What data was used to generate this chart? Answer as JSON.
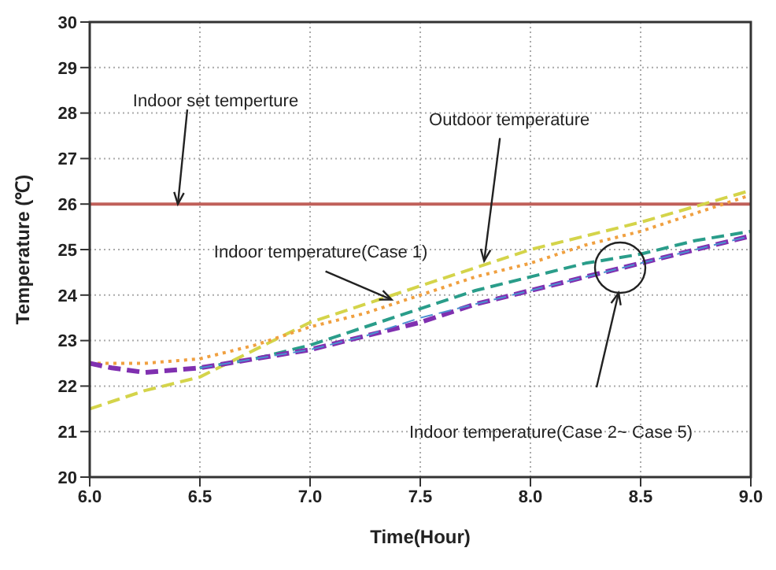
{
  "chart_data": {
    "type": "line",
    "xlabel": "Time(Hour)",
    "ylabel": "Temperature (℃)",
    "xlim": [
      6,
      9
    ],
    "xticks": [
      {
        "value": 6,
        "label": "6.0"
      },
      {
        "value": 6.5,
        "label": "6.5"
      },
      {
        "value": 7,
        "label": "7.0"
      },
      {
        "value": 7.5,
        "label": "7.5"
      },
      {
        "value": 8,
        "label": "8.0"
      },
      {
        "value": 8.5,
        "label": "8.5"
      },
      {
        "value": 9,
        "label": "9.0"
      }
    ],
    "ylim": [
      20,
      30
    ],
    "yticks": [
      20,
      21,
      22,
      23,
      24,
      25,
      26,
      27,
      28,
      29,
      30
    ],
    "grid": true,
    "marker": "none",
    "ref_lines": [
      {
        "axis": "y",
        "value": 26,
        "color": "#c0605a",
        "line_style": "solid"
      }
    ],
    "series": [
      {
        "color": "#d4d44a",
        "line_style": "dashed",
        "x": [
          6,
          6.25,
          6.5,
          6.75,
          7,
          7.25,
          7.5,
          7.75,
          8,
          8.25,
          8.5,
          8.75,
          9
        ],
        "values": [
          21.5,
          21.9,
          22.2,
          22.8,
          23.4,
          23.8,
          24.2,
          24.6,
          25.0,
          25.3,
          25.6,
          25.95,
          26.3
        ]
      },
      {
        "color": "#f0a040",
        "line_style": "dotted",
        "x": [
          6,
          6.25,
          6.5,
          6.75,
          7,
          7.25,
          7.5,
          7.75,
          8,
          8.25,
          8.5,
          8.75,
          9
        ],
        "values": [
          22.5,
          22.5,
          22.6,
          22.9,
          23.3,
          23.6,
          24.0,
          24.4,
          24.7,
          25.1,
          25.4,
          25.8,
          26.2
        ]
      },
      {
        "color": "#2a9d8a",
        "line_style": "dashed",
        "x": [
          6.5,
          6.75,
          7,
          7.25,
          7.5,
          7.75,
          8,
          8.25,
          8.5,
          8.75,
          9
        ],
        "values": [
          22.4,
          22.6,
          22.9,
          23.3,
          23.7,
          24.1,
          24.4,
          24.7,
          24.9,
          25.2,
          25.4
        ]
      },
      {
        "color": "#8030b0",
        "line_style": "dashed",
        "x": [
          6,
          6.1,
          6.25,
          6.5,
          6.75,
          7,
          7.25,
          7.5,
          7.75,
          8,
          8.25,
          8.5,
          8.75,
          9
        ],
        "values": [
          22.5,
          22.4,
          22.3,
          22.4,
          22.6,
          22.8,
          23.1,
          23.4,
          23.8,
          24.1,
          24.4,
          24.7,
          25.0,
          25.3
        ]
      },
      {
        "color": "#4a90d0",
        "line_style": "dashed",
        "x": [
          6.5,
          6.75,
          7,
          7.25,
          7.5,
          7.75,
          8,
          8.25,
          8.5,
          8.75,
          9
        ],
        "values": [
          22.4,
          22.6,
          22.8,
          23.1,
          23.5,
          23.8,
          24.1,
          24.4,
          24.7,
          25.0,
          25.3
        ]
      }
    ],
    "annotations": [
      {
        "text": "Indoor set temperture",
        "x": 6.4,
        "y": 26
      },
      {
        "text": "Outdoor temperature",
        "x": 7.79,
        "y": 24.75
      },
      {
        "text": "Indoor temperature(Case 1)",
        "x": 7.37,
        "y": 23.9
      },
      "Indoor temperature(Case 2~ Case 5)"
    ]
  }
}
